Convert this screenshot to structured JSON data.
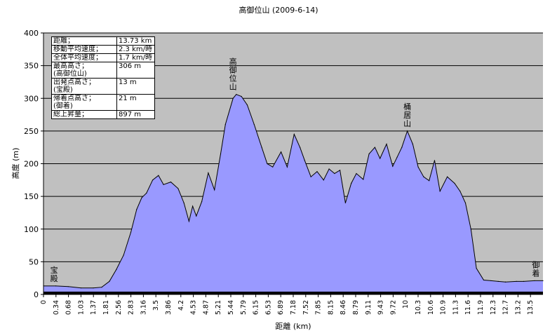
{
  "chart_data": {
    "type": "area",
    "title": "高御位山 (2009-6-14)",
    "xlabel": "距離 (km)",
    "ylabel": "高度 (m)",
    "ylim": [
      0,
      400
    ],
    "yticks": [
      0,
      50,
      100,
      150,
      200,
      250,
      300,
      350,
      400
    ],
    "xlim": [
      0,
      13.73
    ],
    "x_tick_labels": [
      "0",
      "0.34",
      "0.68",
      "1.03",
      "1.37",
      "1.81",
      "2.56",
      "2.83",
      "3.16",
      "3.5",
      "3.86",
      "4.2",
      "4.53",
      "4.87",
      "5.21",
      "5.44",
      "5.79",
      "6.15",
      "6.53",
      "6.89",
      "7.18",
      "7.52",
      "7.85",
      "8.15",
      "8.46",
      "8.79",
      "9.11",
      "9.43",
      "9.72",
      "10",
      "10.3",
      "10.6",
      "10.9",
      "11.3",
      "11.6",
      "11.9",
      "12.3",
      "12.7",
      "13.2",
      "13.5"
    ],
    "grid": true,
    "fill_color": "#9999ff",
    "plot_bg_color": "#c0c0c0",
    "series": [
      {
        "x": [
          0,
          0.34,
          0.68,
          1.03,
          1.37,
          1.6,
          1.81,
          2.0,
          2.2,
          2.4,
          2.56,
          2.7,
          2.83,
          3.0,
          3.16,
          3.3,
          3.5,
          3.7,
          3.86,
          4.0,
          4.1,
          4.2,
          4.35,
          4.53,
          4.7,
          4.87,
          5.0,
          5.21,
          5.3,
          5.44,
          5.6,
          5.79,
          6.0,
          6.15,
          6.3,
          6.53,
          6.7,
          6.89,
          7.05,
          7.18,
          7.35,
          7.52,
          7.7,
          7.85,
          8.0,
          8.15,
          8.3,
          8.46,
          8.6,
          8.79,
          8.95,
          9.11,
          9.25,
          9.43,
          9.6,
          9.72,
          9.85,
          10.0,
          10.15,
          10.3,
          10.45,
          10.6,
          10.75,
          10.9,
          11.1,
          11.3,
          11.45,
          11.6,
          11.75,
          11.9,
          12.1,
          12.3,
          12.5,
          12.7,
          13.0,
          13.2,
          13.5,
          13.73
        ],
        "values": [
          13,
          13,
          12,
          10,
          10,
          11,
          20,
          38,
          60,
          95,
          130,
          148,
          155,
          175,
          182,
          168,
          172,
          162,
          140,
          112,
          135,
          120,
          142,
          186,
          160,
          215,
          260,
          300,
          306,
          303,
          290,
          260,
          225,
          200,
          195,
          218,
          195,
          245,
          225,
          205,
          180,
          188,
          175,
          192,
          185,
          190,
          140,
          170,
          185,
          176,
          215,
          225,
          208,
          230,
          196,
          210,
          225,
          250,
          230,
          195,
          180,
          174,
          205,
          158,
          180,
          170,
          158,
          140,
          100,
          40,
          22,
          21,
          20,
          19,
          20,
          20,
          21,
          21
        ]
      }
    ],
    "annotations": [
      {
        "text": "宝殿",
        "x": 0.1,
        "y": 13
      },
      {
        "text": "高御位山",
        "x": 5.21,
        "y": 306
      },
      {
        "text": "桶居山",
        "x": 10.0,
        "y": 250
      },
      {
        "text": "御着",
        "x": 13.65,
        "y": 21
      }
    ],
    "stats": [
      {
        "label": "距離；",
        "value": "13.73 km"
      },
      {
        "label": "移動平均速度；",
        "value": "2.3 km/時"
      },
      {
        "label": "全体平均速度；",
        "value": "1.7 km/時"
      },
      {
        "label": "最高高さ；\n(高御位山)",
        "value": "306 m"
      },
      {
        "label": "出発点高さ；\n(宝殿)",
        "value": "13 m"
      },
      {
        "label": "帰着点高さ；\n(御着)",
        "value": "21 m"
      },
      {
        "label": "総上昇量；",
        "value": "897 m"
      }
    ]
  }
}
